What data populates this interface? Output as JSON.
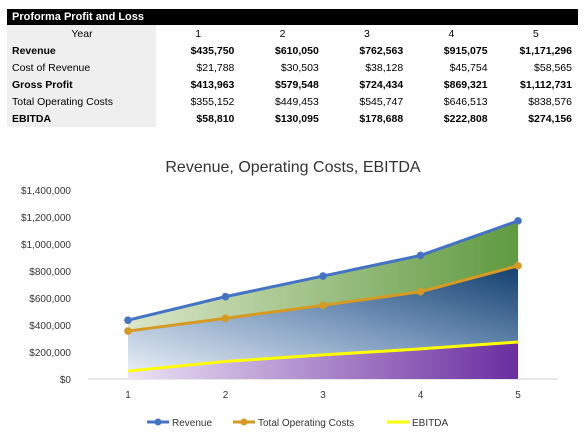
{
  "table": {
    "title": "Proforma Profit and Loss",
    "header": [
      "Year",
      "1",
      "2",
      "3",
      "4",
      "5"
    ],
    "rows": [
      {
        "label": "Revenue",
        "bold": true,
        "values": [
          "$435,750",
          "$610,050",
          "$762,563",
          "$915,075",
          "$1,171,296"
        ]
      },
      {
        "label": "Cost of Revenue",
        "bold": false,
        "values": [
          "$21,788",
          "$30,503",
          "$38,128",
          "$45,754",
          "$58,565"
        ]
      },
      {
        "label": "Gross Profit",
        "bold": true,
        "values": [
          "$413,963",
          "$579,548",
          "$724,434",
          "$869,321",
          "$1,112,731"
        ]
      },
      {
        "label": "Total Operating Costs",
        "bold": false,
        "values": [
          "$355,152",
          "$449,453",
          "$545,747",
          "$646,513",
          "$838,576"
        ]
      },
      {
        "label": "EBITDA",
        "bold": true,
        "values": [
          "$58,810",
          "$130,095",
          "$178,688",
          "$222,808",
          "$274,156"
        ]
      }
    ]
  },
  "chart_data": {
    "type": "area",
    "title": "Revenue, Operating Costs, EBITDA",
    "x": [
      "1",
      "2",
      "3",
      "4",
      "5"
    ],
    "ylim": [
      0,
      1400000
    ],
    "yticks": [
      "$0",
      "$200,000",
      "$400,000",
      "$600,000",
      "$800,000",
      "$1,000,000",
      "$1,200,000",
      "$1,400,000"
    ],
    "grid": false,
    "legend": "bottom",
    "series": [
      {
        "name": "Revenue",
        "color": "#4472c4",
        "values": [
          435750,
          610050,
          762563,
          915075,
          1171296
        ]
      },
      {
        "name": "Total Operating Costs",
        "color": "#d69a22",
        "values": [
          355152,
          449453,
          545747,
          646513,
          838576
        ]
      },
      {
        "name": "EBITDA",
        "color": "#ffff00",
        "values": [
          58810,
          130095,
          178688,
          222808,
          274156
        ]
      }
    ]
  }
}
